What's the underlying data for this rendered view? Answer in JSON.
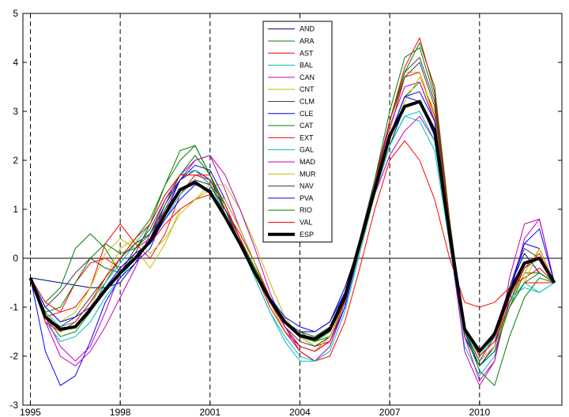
{
  "chart_data": {
    "type": "line",
    "title": "",
    "xlabel": "",
    "ylabel": "",
    "xlim": [
      1994.75,
      2012.75
    ],
    "ylim": [
      -3,
      5
    ],
    "x_ticks": [
      1995,
      1998,
      2001,
      2004,
      2007,
      2010
    ],
    "x_tick_labels": [
      "1995",
      "1998",
      "2001",
      "2004",
      "2007",
      "2010"
    ],
    "y_ticks": [
      -3,
      -2,
      -1,
      0,
      1,
      2,
      3,
      4,
      5
    ],
    "y_tick_labels": [
      "-3",
      "-2",
      "-1",
      "0",
      "1",
      "2",
      "3",
      "4",
      "5"
    ],
    "vertical_dashed_lines_at": [
      1995,
      1998,
      2001,
      2004,
      2007,
      2010
    ],
    "zero_line": true,
    "legend_position": "top-center",
    "x": [
      1995,
      1995.5,
      1996,
      1996.5,
      1997,
      1997.5,
      1998,
      1998.5,
      1999,
      1999.5,
      2000,
      2000.5,
      2001,
      2001.5,
      2002,
      2002.5,
      2003,
      2003.5,
      2004,
      2004.5,
      2005,
      2005.5,
      2006,
      2006.5,
      2007,
      2007.5,
      2008,
      2008.5,
      2009,
      2009.5,
      2010,
      2010.5,
      2011,
      2011.5,
      2012,
      2012.5
    ],
    "series": [
      {
        "name": "AND",
        "color": "#000080",
        "width": 1,
        "values": [
          -0.4,
          -0.45,
          -0.5,
          -0.55,
          -0.6,
          -0.6,
          -0.5,
          -0.1,
          0.4,
          1.1,
          1.6,
          1.8,
          1.6,
          1.0,
          0.3,
          -0.3,
          -0.9,
          -1.3,
          -1.5,
          -1.5,
          -1.3,
          -0.6,
          0.3,
          1.3,
          2.3,
          3.1,
          3.2,
          2.5,
          0.3,
          -1.5,
          -1.9,
          -1.5,
          -0.6,
          0.1,
          -0.3,
          -0.5
        ]
      },
      {
        "name": "ARA",
        "color": "#008000",
        "width": 1,
        "values": [
          -0.4,
          -0.9,
          -0.6,
          0.2,
          0.5,
          0.2,
          -0.3,
          0.1,
          0.7,
          1.5,
          2.0,
          2.3,
          1.7,
          0.9,
          0.3,
          -0.3,
          -0.9,
          -1.3,
          -1.5,
          -1.7,
          -1.6,
          -0.9,
          0.3,
          1.6,
          3.0,
          4.1,
          4.3,
          3.3,
          0.6,
          -1.6,
          -2.2,
          -1.9,
          -1.0,
          -0.3,
          -0.3,
          -0.5
        ]
      },
      {
        "name": "AST",
        "color": "#ff0000",
        "width": 1,
        "values": [
          -0.4,
          -0.9,
          -1.1,
          -1.0,
          -0.6,
          0.3,
          0.7,
          0.3,
          0.0,
          0.5,
          1.3,
          1.7,
          1.7,
          1.1,
          0.4,
          -0.2,
          -0.8,
          -1.3,
          -1.6,
          -1.8,
          -1.7,
          -1.0,
          0.2,
          1.4,
          2.6,
          3.7,
          3.8,
          2.9,
          0.5,
          -1.6,
          -2.2,
          -1.8,
          -1.0,
          -0.5,
          -0.5,
          -0.5
        ]
      },
      {
        "name": "BAL",
        "color": "#00bfbf",
        "width": 1,
        "values": [
          -0.4,
          -1.3,
          -1.7,
          -1.6,
          -1.3,
          -0.8,
          -0.4,
          0.0,
          0.3,
          0.8,
          1.3,
          1.6,
          1.5,
          1.1,
          0.4,
          -0.4,
          -1.1,
          -1.7,
          -2.1,
          -2.1,
          -1.8,
          -1.0,
          0.2,
          1.3,
          2.3,
          2.9,
          2.8,
          2.2,
          0.3,
          -1.8,
          -2.4,
          -2.0,
          -0.9,
          -0.5,
          -0.7,
          -0.5
        ]
      },
      {
        "name": "CAN",
        "color": "#bf00bf",
        "width": 1,
        "values": [
          -0.4,
          -1.2,
          -1.8,
          -2.1,
          -1.8,
          -1.1,
          -0.3,
          0.2,
          0.4,
          1.0,
          1.6,
          2.0,
          2.1,
          1.4,
          0.6,
          -0.1,
          -0.9,
          -1.5,
          -1.9,
          -2.1,
          -1.8,
          -1.0,
          0.2,
          1.3,
          2.1,
          2.6,
          2.9,
          2.4,
          0.4,
          -1.9,
          -2.6,
          -2.1,
          -0.4,
          0.7,
          0.8,
          -0.5
        ]
      },
      {
        "name": "CNT",
        "color": "#bfbf00",
        "width": 1,
        "values": [
          -0.4,
          -1.0,
          -1.3,
          -1.1,
          -0.6,
          0.1,
          0.4,
          0.2,
          -0.2,
          0.3,
          1.0,
          1.2,
          1.5,
          1.5,
          1.0,
          0.3,
          -0.5,
          -1.2,
          -1.6,
          -1.8,
          -1.6,
          -0.9,
          0.2,
          1.4,
          2.6,
          3.8,
          3.8,
          2.8,
          0.5,
          -1.4,
          -2.0,
          -1.7,
          -0.9,
          -0.3,
          0.2,
          -0.5
        ]
      },
      {
        "name": "CLM",
        "color": "#404040",
        "width": 1,
        "values": [
          -0.4,
          -1.0,
          -0.7,
          -0.3,
          0.0,
          -0.2,
          -0.3,
          0.2,
          0.6,
          1.2,
          1.6,
          1.8,
          1.5,
          0.9,
          0.3,
          -0.3,
          -0.9,
          -1.4,
          -1.7,
          -1.8,
          -1.6,
          -0.9,
          0.3,
          1.5,
          2.8,
          3.8,
          4.1,
          3.2,
          0.6,
          -1.5,
          -2.1,
          -1.8,
          -0.9,
          -0.2,
          0.0,
          -0.5
        ]
      },
      {
        "name": "CLE",
        "color": "#0000ff",
        "width": 1,
        "values": [
          -0.4,
          -1.9,
          -2.6,
          -2.4,
          -1.7,
          -0.9,
          -0.4,
          -0.1,
          0.2,
          0.9,
          1.6,
          1.9,
          1.8,
          1.2,
          0.6,
          -0.1,
          -0.8,
          -1.4,
          -1.8,
          -1.9,
          -1.7,
          -1.0,
          0.2,
          1.4,
          2.5,
          3.3,
          3.2,
          2.5,
          0.3,
          -1.6,
          -2.2,
          -1.8,
          -0.6,
          0.3,
          0.2,
          -0.5
        ]
      },
      {
        "name": "CAT",
        "color": "#008000",
        "width": 1,
        "values": [
          -0.4,
          -1.2,
          -1.6,
          -1.5,
          -1.1,
          -0.5,
          0.0,
          0.4,
          0.8,
          1.5,
          2.2,
          2.3,
          1.7,
          1.0,
          0.4,
          -0.2,
          -0.8,
          -1.3,
          -1.6,
          -1.7,
          -1.5,
          -0.9,
          0.2,
          1.4,
          2.5,
          3.3,
          3.6,
          2.8,
          0.5,
          -1.5,
          -2.3,
          -2.6,
          -1.6,
          -0.8,
          -0.4,
          -0.5
        ]
      },
      {
        "name": "EXT",
        "color": "#ff0000",
        "width": 1,
        "values": [
          -0.4,
          -1.2,
          -1.1,
          -0.5,
          -0.1,
          0.0,
          -0.2,
          0.1,
          0.3,
          0.7,
          1.0,
          1.2,
          1.3,
          1.0,
          0.5,
          -0.1,
          -0.8,
          -1.4,
          -1.9,
          -2.1,
          -2.0,
          -1.3,
          -0.2,
          1.0,
          2.0,
          2.4,
          2.0,
          1.2,
          0.0,
          -0.9,
          -1.0,
          -0.9,
          -0.6,
          -0.4,
          -0.2,
          -0.5
        ]
      },
      {
        "name": "GAL",
        "color": "#00bfbf",
        "width": 1,
        "values": [
          -0.4,
          -1.1,
          -1.4,
          -1.3,
          -0.9,
          -0.5,
          -0.1,
          0.3,
          0.7,
          1.3,
          1.7,
          1.8,
          1.5,
          0.9,
          0.3,
          -0.4,
          -1.1,
          -1.6,
          -2.0,
          -2.1,
          -1.9,
          -1.1,
          0.1,
          1.3,
          2.3,
          2.9,
          3.0,
          2.4,
          0.3,
          -1.5,
          -2.0,
          -1.6,
          -0.8,
          -0.6,
          -0.7,
          -0.5
        ]
      },
      {
        "name": "MAD",
        "color": "#bf00bf",
        "width": 1,
        "values": [
          -0.4,
          -1.3,
          -2.0,
          -2.2,
          -1.9,
          -1.4,
          -0.8,
          -0.2,
          0.5,
          1.2,
          1.7,
          2.0,
          2.1,
          1.7,
          1.0,
          0.2,
          -0.7,
          -1.4,
          -1.8,
          -1.9,
          -1.6,
          -0.9,
          0.3,
          1.5,
          2.7,
          3.5,
          3.6,
          2.8,
          0.5,
          -1.6,
          -2.5,
          -2.1,
          -0.8,
          0.4,
          0.8,
          -0.5
        ]
      },
      {
        "name": "MUR",
        "color": "#bfbf00",
        "width": 1,
        "values": [
          -0.4,
          -1.1,
          -1.5,
          -1.4,
          -1.0,
          -0.4,
          0.2,
          0.4,
          0.1,
          0.4,
          0.9,
          1.2,
          1.4,
          1.2,
          0.6,
          -0.1,
          -0.9,
          -1.5,
          -1.8,
          -1.9,
          -1.6,
          -0.9,
          0.2,
          1.3,
          2.4,
          3.2,
          3.7,
          3.0,
          0.6,
          -1.5,
          -2.1,
          -1.8,
          -1.0,
          -0.5,
          0.2,
          -0.5
        ]
      },
      {
        "name": "NAV",
        "color": "#404040",
        "width": 1,
        "values": [
          -0.4,
          -1.2,
          -1.4,
          -1.2,
          -0.8,
          -0.4,
          0.0,
          0.3,
          0.5,
          1.0,
          1.4,
          1.6,
          1.5,
          1.0,
          0.4,
          -0.3,
          -0.9,
          -1.3,
          -1.5,
          -1.6,
          -1.4,
          -0.7,
          0.4,
          1.6,
          2.8,
          3.7,
          4.0,
          3.1,
          0.5,
          -1.5,
          -2.1,
          -1.6,
          -0.6,
          0.2,
          0.0,
          -0.5
        ]
      },
      {
        "name": "PVA",
        "color": "#0000ff",
        "width": 1,
        "values": [
          -0.4,
          -1.0,
          -1.3,
          -1.2,
          -1.0,
          -0.6,
          -0.2,
          0.1,
          0.3,
          0.8,
          1.2,
          1.5,
          1.4,
          0.9,
          0.3,
          -0.3,
          -0.8,
          -1.2,
          -1.4,
          -1.5,
          -1.3,
          -0.7,
          0.3,
          1.4,
          2.5,
          3.3,
          3.4,
          2.8,
          0.6,
          -1.4,
          -1.9,
          -1.6,
          -0.7,
          0.3,
          0.6,
          -0.5
        ]
      },
      {
        "name": "RIO",
        "color": "#008000",
        "width": 1,
        "values": [
          -0.4,
          -1.1,
          -1.0,
          -0.5,
          0.0,
          0.3,
          0.1,
          0.2,
          0.5,
          1.1,
          1.7,
          2.1,
          1.7,
          1.1,
          0.4,
          -0.2,
          -0.8,
          -1.3,
          -1.6,
          -1.7,
          -1.5,
          -0.8,
          0.3,
          1.5,
          2.8,
          3.8,
          4.4,
          3.5,
          0.8,
          -1.5,
          -2.2,
          -1.9,
          -1.0,
          -0.5,
          -0.3,
          -0.5
        ]
      },
      {
        "name": "VAL",
        "color": "#ff0000",
        "width": 1,
        "values": [
          -0.4,
          -1.3,
          -1.5,
          -1.3,
          -0.9,
          -0.4,
          0.0,
          0.4,
          0.7,
          1.3,
          1.7,
          1.7,
          1.6,
          1.1,
          0.4,
          -0.3,
          -1.0,
          -1.5,
          -1.8,
          -1.9,
          -1.7,
          -0.9,
          0.3,
          1.5,
          2.8,
          3.9,
          4.5,
          3.4,
          0.7,
          -1.4,
          -2.0,
          -1.7,
          -0.8,
          -0.2,
          0.1,
          -0.5
        ]
      },
      {
        "name": "ESP",
        "color": "#000000",
        "width": 4,
        "values": [
          -0.4,
          -1.2,
          -1.45,
          -1.4,
          -1.05,
          -0.65,
          -0.3,
          0.0,
          0.35,
          0.9,
          1.4,
          1.55,
          1.35,
          0.85,
          0.3,
          -0.3,
          -0.85,
          -1.3,
          -1.58,
          -1.65,
          -1.45,
          -0.8,
          0.3,
          1.4,
          2.5,
          3.1,
          3.2,
          2.6,
          0.5,
          -1.45,
          -1.9,
          -1.55,
          -0.7,
          -0.1,
          0.0,
          -0.5
        ]
      }
    ]
  }
}
